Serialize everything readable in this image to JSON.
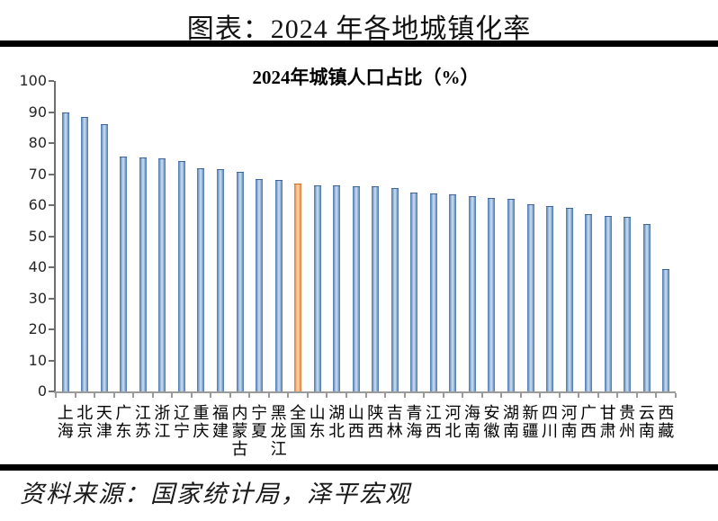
{
  "page": {
    "header_title": "图表：2024 年各地城镇化率",
    "footer_source": "资料来源：国家统计局，泽平宏观"
  },
  "chart_data": {
    "type": "bar",
    "title": "2024年城镇人口占比（%）",
    "categories": [
      "上海",
      "北京",
      "天津",
      "广东",
      "江苏",
      "浙江",
      "辽宁",
      "重庆",
      "福建",
      "内蒙古",
      "宁夏",
      "黑龙江",
      "全国",
      "山东",
      "湖北",
      "山西",
      "陕西",
      "吉林",
      "青海",
      "江西",
      "河北",
      "海南",
      "安徽",
      "湖南",
      "新疆",
      "四川",
      "河南",
      "广西",
      "甘肃",
      "贵州",
      "云南",
      "西藏"
    ],
    "values": [
      89.9,
      88.3,
      86.0,
      75.8,
      75.5,
      75.2,
      74.1,
      72.0,
      71.7,
      70.8,
      68.3,
      68.1,
      67.0,
      66.5,
      66.3,
      66.2,
      66.1,
      65.6,
      64.0,
      63.8,
      63.4,
      63.0,
      62.4,
      62.0,
      60.3,
      59.8,
      59.0,
      57.2,
      56.5,
      56.3,
      54.0,
      39.5
    ],
    "highlight_index": 12,
    "highlight_category": "全国",
    "ylim": [
      0,
      100
    ],
    "ytick_step": 10,
    "ytick_labels": [
      "0",
      "10",
      "20",
      "30",
      "40",
      "50",
      "60",
      "70",
      "80",
      "90",
      "100"
    ],
    "grid": false,
    "legend_position": "none",
    "bar_color_normal": "#4f81bd",
    "bar_color_highlight": "#ed7d31",
    "axis_color": "#6e6e6e"
  }
}
